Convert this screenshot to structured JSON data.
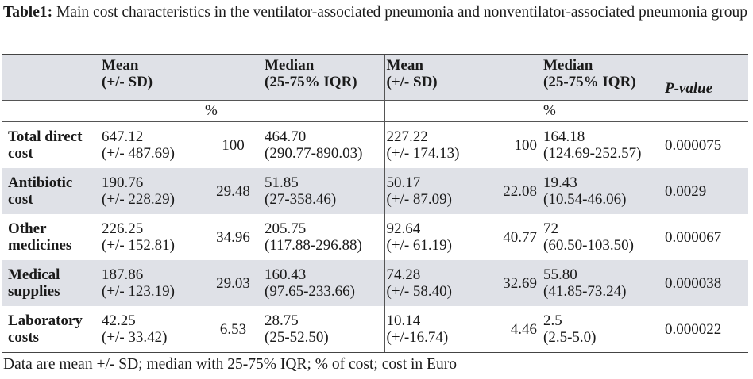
{
  "caption": {
    "label": "Table1:",
    "text": " Main cost characteristics in the ventilator-associated pneumonia and nonventilator-associated pneumonia group"
  },
  "header": {
    "col_mean_1": [
      "Mean",
      "(+/- SD)"
    ],
    "col_median_1": [
      "Median",
      "(25-75% IQR)"
    ],
    "col_mean_2": [
      "Mean",
      "(+/- SD)"
    ],
    "col_median_2": [
      "Median",
      "(25-75% IQR)"
    ],
    "col_pvalue": "P-value",
    "pct_1": "%",
    "pct_2": "%"
  },
  "rows": [
    {
      "label": [
        "Total direct",
        "cost"
      ],
      "mean1": [
        "647.12",
        "(+/- 487.69)"
      ],
      "pct1": "100",
      "median1": [
        "464.70",
        "(290.77-890.03)"
      ],
      "mean2": [
        "227.22",
        "(+/- 174.13)"
      ],
      "pct2": "100",
      "median2": [
        "164.18",
        "(124.69-252.57)"
      ],
      "pvalue": "0.000075"
    },
    {
      "label": [
        "Antibiotic",
        "cost"
      ],
      "mean1": [
        "190.76",
        "(+/- 228.29)"
      ],
      "pct1": "29.48",
      "median1": [
        "51.85",
        "(27-358.46)"
      ],
      "mean2": [
        "50.17",
        "(+/- 87.09)"
      ],
      "pct2": "22.08",
      "median2": [
        "19.43",
        "(10.54-46.06)"
      ],
      "pvalue": "0.0029"
    },
    {
      "label": [
        "Other",
        "medicines"
      ],
      "mean1": [
        "226.25",
        "(+/- 152.81)"
      ],
      "pct1": "34.96",
      "median1": [
        "205.75",
        "(117.88-296.88)"
      ],
      "mean2": [
        "92.64",
        "(+/- 61.19)"
      ],
      "pct2": "40.77",
      "median2": [
        "72",
        "(60.50-103.50)"
      ],
      "pvalue": "0.000067"
    },
    {
      "label": [
        "Medical",
        "supplies"
      ],
      "mean1": [
        "187.86",
        "(+/- 123.19)"
      ],
      "pct1": "29.03",
      "median1": [
        "160.43",
        "(97.65-233.66)"
      ],
      "mean2": [
        "74.28",
        "(+/- 58.40)"
      ],
      "pct2": "32.69",
      "median2": [
        "55.80",
        "(41.85-73.24)"
      ],
      "pvalue": "0.000038"
    },
    {
      "label": [
        "Laboratory",
        "costs"
      ],
      "mean1": [
        "42.25",
        "(+/- 33.42)"
      ],
      "pct1": "6.53",
      "median1": [
        "28.75",
        "(25-52.50)"
      ],
      "mean2": [
        "10.14",
        "(+/-16.74)"
      ],
      "pct2": "4.46",
      "median2": [
        "2.5",
        "(2.5-5.0)"
      ],
      "pvalue": "0.000022"
    }
  ],
  "footnote": "Data are mean +/- SD; median with 25-75% IQR; % of cost; cost in Euro",
  "colors": {
    "shade": "#dfe1e7",
    "rule": "#444444"
  }
}
